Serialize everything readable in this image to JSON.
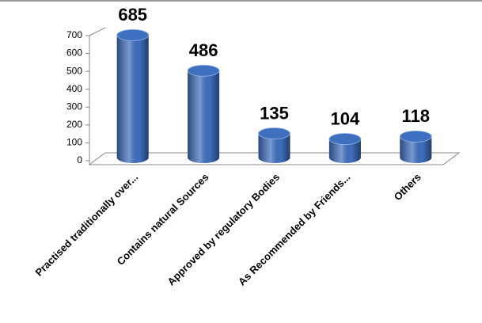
{
  "chart_data": {
    "type": "cylinder-bar",
    "categories": [
      "Practised traditionally over...",
      "Contains natural Sources",
      "Approved by regulatory Bodies",
      "As Recommended by Friends...",
      "Others"
    ],
    "values": [
      685,
      486,
      135,
      104,
      118
    ],
    "color": "#3f6fbf",
    "ylim": [
      0,
      700
    ],
    "yticks": [
      0,
      100,
      200,
      300,
      400,
      500,
      600,
      700
    ]
  }
}
